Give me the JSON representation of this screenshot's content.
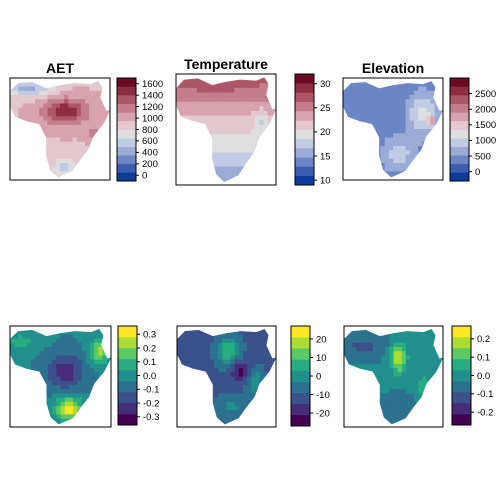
{
  "chart_data": [
    {
      "type": "heatmap",
      "title": "AET",
      "colormap": "blue-white-red",
      "legend_range": [
        -100,
        1700
      ],
      "legend_breaks": [
        0,
        200,
        400,
        600,
        800,
        1000,
        1200,
        1400,
        1600
      ],
      "legend_labels": [
        "0",
        "200",
        "400",
        "600",
        "800",
        "1000",
        "1200",
        "1400",
        "1600"
      ]
    },
    {
      "type": "heatmap",
      "title": "Temperature",
      "colormap": "blue-white-red",
      "legend_range": [
        9,
        32
      ],
      "legend_breaks": [
        10,
        15,
        20,
        25,
        30
      ],
      "legend_labels": [
        "10",
        "15",
        "20",
        "25",
        "30"
      ]
    },
    {
      "type": "heatmap",
      "title": "Elevation",
      "colormap": "blue-white-red",
      "legend_range": [
        -300,
        3000
      ],
      "legend_breaks": [
        0,
        500,
        1000,
        1500,
        2000,
        2500
      ],
      "legend_labels": [
        "0",
        "500",
        "1000",
        "1500",
        "2000",
        "2500"
      ]
    },
    {
      "type": "heatmap",
      "title": "",
      "colormap": "viridis",
      "legend_range": [
        -0.36,
        0.36
      ],
      "legend_breaks": [
        -0.3,
        -0.2,
        -0.1,
        0.0,
        0.1,
        0.2,
        0.3
      ],
      "legend_labels": [
        "-0.3",
        "-0.2",
        "-0.1",
        "0.0",
        "0.1",
        "0.2",
        "0.3"
      ]
    },
    {
      "type": "heatmap",
      "title": "",
      "colormap": "viridis",
      "legend_range": [
        -27,
        27
      ],
      "legend_breaks": [
        -20,
        -10,
        0,
        10,
        20
      ],
      "legend_labels": [
        "-20",
        "-10",
        "0",
        "10",
        "20"
      ]
    },
    {
      "type": "heatmap",
      "title": "",
      "colormap": "viridis",
      "legend_range": [
        -0.27,
        0.27
      ],
      "legend_breaks": [
        -0.2,
        -0.1,
        0.0,
        0.1,
        0.2
      ],
      "legend_labels": [
        "-0.2",
        "-0.1",
        "0.0",
        "0.1",
        "0.2"
      ]
    }
  ]
}
